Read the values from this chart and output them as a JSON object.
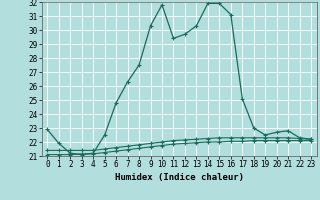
{
  "xlabel": "Humidex (Indice chaleur)",
  "bg_color": "#b2dede",
  "grid_color": "#ffffff",
  "line_color": "#1a6b5a",
  "xlim": [
    -0.5,
    23.5
  ],
  "ylim": [
    21,
    32
  ],
  "yticks": [
    21,
    22,
    23,
    24,
    25,
    26,
    27,
    28,
    29,
    30,
    31,
    32
  ],
  "xticks": [
    0,
    1,
    2,
    3,
    4,
    5,
    6,
    7,
    8,
    9,
    10,
    11,
    12,
    13,
    14,
    15,
    16,
    17,
    18,
    19,
    20,
    21,
    22,
    23
  ],
  "series1_x": [
    0,
    1,
    2,
    3,
    4,
    5,
    6,
    7,
    8,
    9,
    10,
    11,
    12,
    13,
    14,
    15,
    16,
    17,
    18,
    19,
    20,
    21,
    22,
    23
  ],
  "series1_y": [
    22.9,
    21.9,
    21.2,
    21.1,
    21.2,
    22.5,
    24.8,
    26.3,
    27.5,
    30.3,
    31.8,
    29.4,
    29.7,
    30.3,
    31.9,
    31.9,
    31.1,
    25.1,
    23.0,
    22.5,
    22.7,
    22.8,
    22.3,
    22.2
  ],
  "series2_x": [
    0,
    1,
    2,
    3,
    4,
    5,
    6,
    7,
    8,
    9,
    10,
    11,
    12,
    13,
    14,
    15,
    16,
    17,
    18,
    19,
    20,
    21,
    22,
    23
  ],
  "series2_y": [
    21.4,
    21.4,
    21.4,
    21.4,
    21.4,
    21.5,
    21.6,
    21.7,
    21.8,
    21.9,
    22.0,
    22.1,
    22.15,
    22.2,
    22.25,
    22.3,
    22.3,
    22.3,
    22.3,
    22.3,
    22.3,
    22.3,
    22.25,
    22.2
  ],
  "series3_x": [
    0,
    1,
    2,
    3,
    4,
    5,
    6,
    7,
    8,
    9,
    10,
    11,
    12,
    13,
    14,
    15,
    16,
    17,
    18,
    19,
    20,
    21,
    22,
    23
  ],
  "series3_y": [
    21.1,
    21.1,
    21.1,
    21.15,
    21.15,
    21.25,
    21.35,
    21.45,
    21.55,
    21.65,
    21.75,
    21.85,
    21.9,
    21.95,
    22.0,
    22.0,
    22.05,
    22.05,
    22.1,
    22.1,
    22.1,
    22.1,
    22.1,
    22.1
  ]
}
